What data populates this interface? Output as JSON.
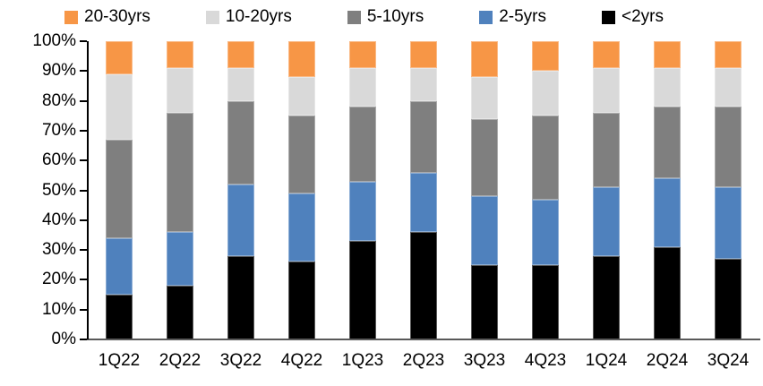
{
  "chart_data": {
    "type": "stacked-bar-100",
    "title": "",
    "xlabel": "",
    "ylabel": "",
    "categories": [
      "1Q22",
      "2Q22",
      "3Q22",
      "4Q22",
      "1Q23",
      "2Q23",
      "3Q23",
      "4Q23",
      "1Q24",
      "2Q24",
      "3Q24"
    ],
    "stack_order": "bottom-to-top",
    "series": [
      {
        "name": "<2yrs",
        "color": "#000000",
        "values": [
          15,
          18,
          28,
          26,
          33,
          36,
          25,
          25,
          28,
          31,
          27
        ]
      },
      {
        "name": "2-5yrs",
        "color": "#4F81BD",
        "values": [
          19,
          18,
          24,
          23,
          20,
          20,
          23,
          22,
          23,
          23,
          24
        ]
      },
      {
        "name": "5-10yrs",
        "color": "#7F7F7F",
        "values": [
          33,
          40,
          28,
          26,
          25,
          24,
          26,
          28,
          25,
          24,
          27
        ]
      },
      {
        "name": "10-20yrs",
        "color": "#D9D9D9",
        "values": [
          22,
          15,
          11,
          13,
          13,
          11,
          14,
          15,
          15,
          13,
          13
        ]
      },
      {
        "name": "20-30yrs",
        "color": "#F79646",
        "values": [
          11,
          9,
          9,
          12,
          9,
          9,
          12,
          10,
          9,
          9,
          9
        ]
      }
    ],
    "legend_order": [
      "20-30yrs",
      "10-20yrs",
      "5-10yrs",
      "2-5yrs",
      "<2yrs"
    ],
    "legend_position": "top",
    "y_ticks": [
      "0%",
      "10%",
      "20%",
      "30%",
      "40%",
      "50%",
      "60%",
      "70%",
      "80%",
      "90%",
      "100%"
    ],
    "ylim": [
      0,
      100
    ],
    "grid": false,
    "axis_color": "#000000"
  }
}
